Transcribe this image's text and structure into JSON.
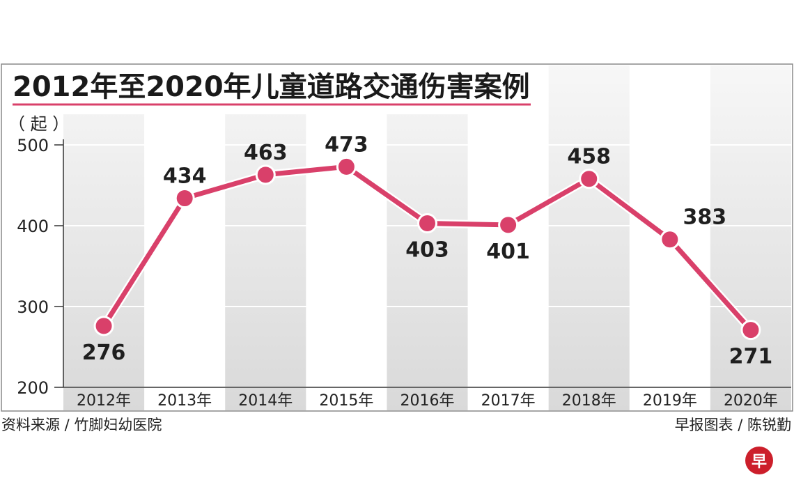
{
  "chart_data": {
    "type": "line",
    "title": "2012年至2020年儿童道路交通伤害案例",
    "unit": "（ 起 ）",
    "categories": [
      "2012年",
      "2013年",
      "2014年",
      "2015年",
      "2016年",
      "2017年",
      "2018年",
      "2019年",
      "2020年"
    ],
    "values": [
      276,
      434,
      463,
      473,
      403,
      401,
      458,
      383,
      271
    ],
    "yticks": [
      200,
      300,
      400,
      500
    ],
    "ylim": [
      200,
      500
    ],
    "grid": true,
    "line_color": "#d9406a",
    "band_color": "#e6e6e6"
  },
  "footer": {
    "source": "资料来源 / 竹脚妇幼医院",
    "credit": "早报图表 / 陈锐勤"
  },
  "logo": {
    "text": "早",
    "color": "#cc1f2b"
  }
}
